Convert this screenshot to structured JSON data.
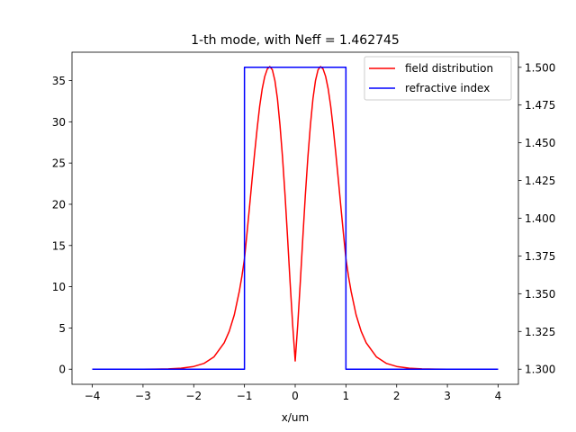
{
  "chart_data": {
    "type": "line",
    "title": "1-th mode, with Neff = 1.462745",
    "xlabel": "x/um",
    "ylabel_left": "",
    "ylabel_right": "",
    "xlim": [
      -4.4,
      4.4
    ],
    "ylim_left": [
      -1.83,
      38.44
    ],
    "ylim_right": [
      1.29,
      1.51
    ],
    "xticks": [
      -4,
      -3,
      -2,
      -1,
      0,
      1,
      2,
      3,
      4
    ],
    "xtick_labels": [
      "−4",
      "−3",
      "−2",
      "−1",
      "0",
      "1",
      "2",
      "3",
      "4"
    ],
    "yticks_left": [
      0,
      5,
      10,
      15,
      20,
      25,
      30,
      35
    ],
    "ytick_labels_left": [
      "0",
      "5",
      "10",
      "15",
      "20",
      "25",
      "30",
      "35"
    ],
    "yticks_right": [
      1.3,
      1.325,
      1.35,
      1.375,
      1.4,
      1.425,
      1.45,
      1.475,
      1.5
    ],
    "ytick_labels_right": [
      "1.300",
      "1.325",
      "1.350",
      "1.375",
      "1.400",
      "1.425",
      "1.450",
      "1.475",
      "1.500"
    ],
    "grid": false,
    "legend_position": "top-right",
    "series": [
      {
        "name": "field distribution",
        "color": "#ff0000",
        "axis": "left",
        "x": [
          -4.0,
          -3.5,
          -3.0,
          -2.75,
          -2.5,
          -2.25,
          -2.0,
          -1.8,
          -1.6,
          -1.4,
          -1.3,
          -1.2,
          -1.1,
          -1.05,
          -1.0,
          -0.95,
          -0.9,
          -0.85,
          -0.8,
          -0.75,
          -0.7,
          -0.65,
          -0.6,
          -0.55,
          -0.5,
          -0.45,
          -0.4,
          -0.35,
          -0.3,
          -0.25,
          -0.2,
          -0.15,
          -0.1,
          -0.05,
          0.0,
          0.05,
          0.1,
          0.15,
          0.2,
          0.25,
          0.3,
          0.35,
          0.4,
          0.45,
          0.5,
          0.55,
          0.6,
          0.65,
          0.7,
          0.75,
          0.8,
          0.85,
          0.9,
          0.95,
          1.0,
          1.05,
          1.1,
          1.2,
          1.3,
          1.4,
          1.6,
          1.8,
          2.0,
          2.25,
          2.5,
          2.75,
          3.0,
          3.5,
          4.0
        ],
        "y": [
          0.0,
          0.0,
          0.0,
          0.01,
          0.04,
          0.12,
          0.33,
          0.7,
          1.5,
          3.2,
          4.6,
          6.6,
          9.5,
          11.3,
          13.4,
          16.5,
          19.7,
          23.0,
          26.2,
          29.2,
          31.9,
          34.0,
          35.5,
          36.4,
          36.7,
          36.3,
          35.0,
          32.8,
          29.6,
          25.7,
          21.1,
          15.9,
          10.5,
          5.4,
          1.0,
          5.4,
          10.5,
          15.9,
          21.1,
          25.7,
          29.6,
          32.8,
          35.0,
          36.3,
          36.7,
          36.4,
          35.5,
          34.0,
          31.9,
          29.2,
          26.2,
          23.0,
          19.7,
          16.5,
          13.4,
          11.3,
          9.5,
          6.6,
          4.6,
          3.2,
          1.5,
          0.7,
          0.33,
          0.12,
          0.04,
          0.01,
          0.0,
          0.0,
          0.0
        ]
      },
      {
        "name": "refractive index",
        "color": "#0000ff",
        "axis": "right",
        "x": [
          -4.0,
          -1.0,
          -1.0,
          1.0,
          1.0,
          4.0
        ],
        "y": [
          1.3,
          1.3,
          1.5,
          1.5,
          1.3,
          1.3
        ]
      }
    ]
  }
}
